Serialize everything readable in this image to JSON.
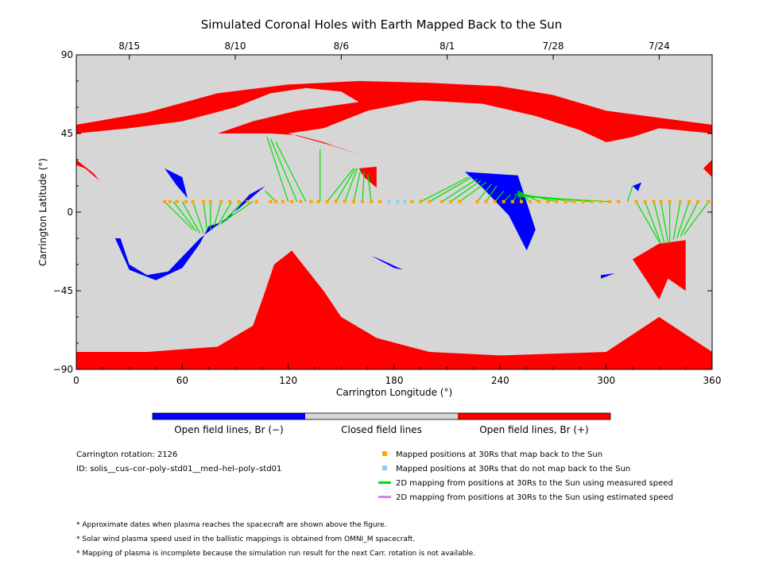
{
  "chart_data": {
    "type": "map",
    "title": "Simulated Coronal Holes with Earth Mapped Back to the Sun",
    "xlabel": "Carrington Longitude (°)",
    "ylabel": "Carrington Latitude (°)",
    "xlim": [
      0,
      360
    ],
    "ylim": [
      -90,
      90
    ],
    "x_ticks": [
      0,
      60,
      120,
      180,
      240,
      300,
      360
    ],
    "y_ticks": [
      -90,
      -45,
      0,
      45,
      90
    ],
    "top_dates": [
      {
        "label": "8/15",
        "lon": 30
      },
      {
        "label": "8/10",
        "lon": 90
      },
      {
        "label": "8/6",
        "lon": 150
      },
      {
        "label": "8/1",
        "lon": 210
      },
      {
        "label": "7/28",
        "lon": 270
      },
      {
        "label": "7/24",
        "lon": 330
      }
    ],
    "regions": {
      "positive": [
        [
          [
            0,
            45
          ],
          [
            30,
            48
          ],
          [
            60,
            52
          ],
          [
            90,
            60
          ],
          [
            110,
            68
          ],
          [
            130,
            71
          ],
          [
            150,
            69
          ],
          [
            160,
            63
          ],
          [
            125,
            58
          ],
          [
            100,
            52
          ],
          [
            80,
            45
          ],
          [
            110,
            45
          ],
          [
            125,
            44
          ],
          [
            140,
            40
          ],
          [
            160,
            33
          ],
          [
            145,
            38
          ],
          [
            120,
            45
          ],
          [
            140,
            48
          ],
          [
            165,
            58
          ],
          [
            195,
            64
          ],
          [
            230,
            62
          ],
          [
            260,
            55
          ],
          [
            285,
            47
          ],
          [
            300,
            40
          ],
          [
            315,
            43
          ],
          [
            330,
            48
          ],
          [
            360,
            45
          ],
          [
            360,
            50
          ],
          [
            330,
            54
          ],
          [
            300,
            58
          ],
          [
            270,
            67
          ],
          [
            240,
            72
          ],
          [
            200,
            74
          ],
          [
            160,
            75
          ],
          [
            120,
            73
          ],
          [
            80,
            68
          ],
          [
            40,
            57
          ],
          [
            0,
            50
          ]
        ],
        [
          [
            0,
            -90
          ],
          [
            360,
            -90
          ],
          [
            360,
            -80
          ],
          [
            330,
            -60
          ],
          [
            300,
            -80
          ],
          [
            240,
            -82
          ],
          [
            200,
            -80
          ],
          [
            170,
            -72
          ],
          [
            150,
            -60
          ],
          [
            140,
            -45
          ],
          [
            122,
            -22
          ],
          [
            112,
            -30
          ],
          [
            106,
            -48
          ],
          [
            100,
            -65
          ],
          [
            80,
            -77
          ],
          [
            40,
            -80
          ],
          [
            0,
            -80
          ]
        ],
        [
          [
            315,
            -27
          ],
          [
            330,
            -18
          ],
          [
            345,
            -16
          ],
          [
            345,
            -45
          ],
          [
            335,
            -38
          ],
          [
            330,
            -50
          ]
        ],
        [
          [
            0,
            30
          ],
          [
            10,
            22
          ],
          [
            13,
            18
          ],
          [
            5,
            25
          ],
          [
            0,
            27
          ]
        ],
        [
          [
            160,
            25
          ],
          [
            170,
            26
          ],
          [
            170,
            14
          ],
          [
            163,
            20
          ]
        ],
        [
          [
            360,
            30
          ],
          [
            355,
            25
          ],
          [
            360,
            20
          ]
        ]
      ],
      "negative": [
        [
          [
            22,
            -15
          ],
          [
            30,
            -33
          ],
          [
            45,
            -39
          ],
          [
            60,
            -32
          ],
          [
            70,
            -18
          ],
          [
            75,
            -8
          ],
          [
            85,
            -5
          ],
          [
            98,
            10
          ],
          [
            107,
            15
          ],
          [
            92,
            2
          ],
          [
            70,
            -15
          ],
          [
            52,
            -34
          ],
          [
            40,
            -36
          ],
          [
            30,
            -30
          ],
          [
            25,
            -15
          ]
        ],
        [
          [
            50,
            25
          ],
          [
            60,
            20
          ],
          [
            63,
            8
          ],
          [
            57,
            15
          ]
        ],
        [
          [
            220,
            23
          ],
          [
            250,
            21
          ],
          [
            260,
            -10
          ],
          [
            255,
            -22
          ],
          [
            245,
            -2
          ],
          [
            230,
            14
          ]
        ],
        [
          [
            167,
            -25
          ],
          [
            180,
            -32
          ],
          [
            185,
            -33
          ],
          [
            172,
            -27
          ]
        ],
        [
          [
            297,
            -36
          ],
          [
            305,
            -35
          ],
          [
            297,
            -38
          ]
        ],
        [
          [
            315,
            15
          ],
          [
            320,
            17
          ],
          [
            318,
            12
          ]
        ]
      ]
    },
    "mapped_points_measured_lon": [
      50,
      53,
      57,
      62,
      66,
      72,
      76,
      82,
      87,
      92,
      97,
      102,
      110,
      113,
      117,
      122,
      127,
      133,
      137,
      142,
      147,
      152,
      157,
      162,
      167,
      172,
      190,
      195,
      200,
      207,
      212,
      217,
      227,
      232,
      237,
      242,
      247,
      252,
      257,
      262,
      267,
      272,
      277,
      282,
      287,
      292,
      297,
      302,
      307,
      317,
      322,
      327,
      331,
      336,
      342,
      347,
      352,
      358
    ],
    "mapped_points_not_mapped_lon": [
      177,
      182,
      186
    ],
    "mapped_latitude": 6,
    "mapping_lines": [
      [
        [
          50,
          6
        ],
        [
          66,
          -10
        ]
      ],
      [
        [
          55,
          6
        ],
        [
          68,
          -11
        ]
      ],
      [
        [
          60,
          6
        ],
        [
          70,
          -12
        ]
      ],
      [
        [
          66,
          6
        ],
        [
          72,
          -12
        ]
      ],
      [
        [
          72,
          6
        ],
        [
          74,
          -10
        ]
      ],
      [
        [
          76,
          6
        ],
        [
          76,
          -10
        ]
      ],
      [
        [
          82,
          6
        ],
        [
          78,
          -8
        ]
      ],
      [
        [
          88,
          6
        ],
        [
          80,
          -8
        ]
      ],
      [
        [
          94,
          6
        ],
        [
          82,
          -7
        ]
      ],
      [
        [
          100,
          6
        ],
        [
          84,
          -5
        ]
      ],
      [
        [
          113,
          6
        ],
        [
          107,
          12
        ]
      ],
      [
        [
          120,
          6
        ],
        [
          108,
          43
        ]
      ],
      [
        [
          125,
          6
        ],
        [
          110,
          42
        ]
      ],
      [
        [
          130,
          6
        ],
        [
          113,
          40
        ]
      ],
      [
        [
          138,
          6
        ],
        [
          138,
          36
        ]
      ],
      [
        [
          142,
          6
        ],
        [
          157,
          25
        ]
      ],
      [
        [
          147,
          6
        ],
        [
          158,
          25
        ]
      ],
      [
        [
          152,
          6
        ],
        [
          159,
          25
        ]
      ],
      [
        [
          157,
          6
        ],
        [
          161,
          24
        ]
      ],
      [
        [
          162,
          6
        ],
        [
          163,
          23
        ]
      ],
      [
        [
          167,
          6
        ],
        [
          165,
          22
        ]
      ],
      [
        [
          195,
          6
        ],
        [
          222,
          20
        ]
      ],
      [
        [
          200,
          6
        ],
        [
          224,
          20
        ]
      ],
      [
        [
          207,
          6
        ],
        [
          227,
          19
        ]
      ],
      [
        [
          212,
          6
        ],
        [
          229,
          18
        ]
      ],
      [
        [
          217,
          6
        ],
        [
          232,
          17
        ]
      ],
      [
        [
          227,
          6
        ],
        [
          235,
          16
        ]
      ],
      [
        [
          232,
          6
        ],
        [
          238,
          15
        ]
      ],
      [
        [
          237,
          6
        ],
        [
          242,
          12
        ]
      ],
      [
        [
          242,
          6
        ],
        [
          246,
          10
        ]
      ],
      [
        [
          247,
          6
        ],
        [
          249,
          9
        ]
      ],
      [
        [
          252,
          6
        ],
        [
          250,
          12
        ]
      ],
      [
        [
          257,
          6
        ],
        [
          252,
          10
        ]
      ],
      [
        [
          262,
          6
        ],
        [
          250,
          12
        ]
      ],
      [
        [
          272,
          6
        ],
        [
          250,
          11
        ]
      ],
      [
        [
          282,
          6
        ],
        [
          250,
          10
        ]
      ],
      [
        [
          292,
          6
        ],
        [
          248,
          10
        ]
      ],
      [
        [
          302,
          6
        ],
        [
          250,
          9
        ]
      ],
      [
        [
          312,
          6
        ],
        [
          315,
          15
        ]
      ],
      [
        [
          317,
          6
        ],
        [
          330,
          -17
        ]
      ],
      [
        [
          322,
          6
        ],
        [
          331,
          -18
        ]
      ],
      [
        [
          327,
          6
        ],
        [
          333,
          -18
        ]
      ],
      [
        [
          331,
          6
        ],
        [
          335,
          -17
        ]
      ],
      [
        [
          336,
          6
        ],
        [
          336,
          -18
        ]
      ],
      [
        [
          342,
          6
        ],
        [
          338,
          -16
        ]
      ],
      [
        [
          347,
          6
        ],
        [
          340,
          -15
        ]
      ],
      [
        [
          352,
          6
        ],
        [
          342,
          -14
        ]
      ],
      [
        [
          358,
          6
        ],
        [
          344,
          -13
        ]
      ]
    ],
    "colors": {
      "closed": "#d6d6d6",
      "positive": "#ff0000",
      "negative": "#0000ff",
      "measured_point": "#ffa500",
      "unmapped_point": "#87cefa",
      "measured_line": "#00e000",
      "estimated_line": "#cc88ee"
    },
    "colorbar": {
      "labels": [
        "Open field lines, Br (−)",
        "Closed field lines",
        "Open field lines, Br (+)"
      ],
      "colors": [
        "#0000ff",
        "#d6d6d6",
        "#ff0000"
      ]
    }
  },
  "info": {
    "rotation": "Carrington rotation: 2126",
    "id": "ID: solis__cus–cor–poly–std01__med–hel–poly–std01"
  },
  "legend": [
    {
      "type": "square",
      "color": "#ffa500",
      "label": "Mapped positions at 30Rs that map back to the Sun"
    },
    {
      "type": "square",
      "color": "#87cefa",
      "label": "Mapped positions at 30Rs that do not map back to the Sun"
    },
    {
      "type": "line",
      "color": "#00e000",
      "label": "2D mapping from positions at 30Rs to the Sun using measured speed"
    },
    {
      "type": "line",
      "color": "#cc88ee",
      "label": "2D mapping from positions at 30Rs to the Sun using estimated speed"
    }
  ],
  "notes": [
    "* Approximate dates when plasma reaches the spacecraft are shown above the figure.",
    "* Solar wind plasma speed used in the ballistic mappings is obtained from OMNI_M spacecraft.",
    "* Mapping of plasma is incomplete because the simulation run result for the next Carr. rotation is not available."
  ]
}
